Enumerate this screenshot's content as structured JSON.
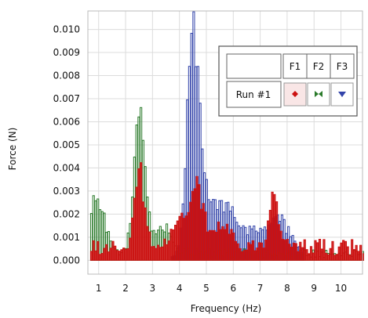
{
  "chart_data": {
    "type": "bar",
    "xlabel": "Frequency (Hz)",
    "ylabel": "Force (N)",
    "xlim": [
      0.6,
      10.8
    ],
    "ylim": [
      -0.0006,
      0.0108
    ],
    "x_ticks": [
      1,
      2,
      3,
      4,
      5,
      6,
      7,
      8,
      9,
      10
    ],
    "y_ticks": [
      0.0,
      0.001,
      0.002,
      0.003,
      0.004,
      0.005,
      0.006,
      0.007,
      0.008,
      0.009,
      0.01
    ],
    "y_tick_labels": [
      "0.000",
      "0.001",
      "0.002",
      "0.003",
      "0.004",
      "0.005",
      "0.006",
      "0.007",
      "0.008",
      "0.009",
      "0.010"
    ],
    "x_tick_labels": [
      "1",
      "2",
      "3",
      "4",
      "5",
      "6",
      "7",
      "8",
      "9",
      "10"
    ],
    "grid": true,
    "legend": {
      "placement": "top-right",
      "header": [
        "F1",
        "F2",
        "F3"
      ],
      "row_label": "Run #1"
    },
    "bin_width": 0.08,
    "series": [
      {
        "name": "F1",
        "color": "#cc1111",
        "marker": "diamond-icon",
        "peaks": [
          {
            "center": 2.5,
            "amp": 0.0035,
            "width": 0.18
          },
          {
            "center": 4.6,
            "amp": 0.0029,
            "width": 0.25
          },
          {
            "center": 7.5,
            "amp": 0.0025,
            "width": 0.18
          },
          {
            "center": 3.9,
            "amp": 0.0012,
            "width": 0.2
          },
          {
            "center": 5.6,
            "amp": 0.0009,
            "width": 0.35
          }
        ],
        "baseline": 0.0007,
        "range": [
          0.7,
          10.8
        ]
      },
      {
        "name": "F2",
        "color": "#2a7a2a",
        "marker": "bowtie-icon",
        "peaks": [
          {
            "center": 2.5,
            "amp": 0.0068,
            "width": 0.2
          },
          {
            "center": 0.85,
            "amp": 0.0022,
            "width": 0.35
          },
          {
            "center": 3.4,
            "amp": 0.0012,
            "width": 0.3
          }
        ],
        "baseline": 0.0004,
        "range": [
          0.7,
          10.8
        ]
      },
      {
        "name": "F3",
        "color": "#3344aa",
        "marker": "triangle-down-icon",
        "peaks": [
          {
            "center": 4.5,
            "amp": 0.0101,
            "width": 0.23
          },
          {
            "center": 5.3,
            "amp": 0.0022,
            "width": 0.5
          },
          {
            "center": 6.4,
            "amp": 0.0011,
            "width": 0.7
          },
          {
            "center": 7.7,
            "amp": 0.0015,
            "width": 0.4
          }
        ],
        "baseline": 0.0003,
        "range": [
          3.7,
          8.6
        ]
      }
    ]
  }
}
